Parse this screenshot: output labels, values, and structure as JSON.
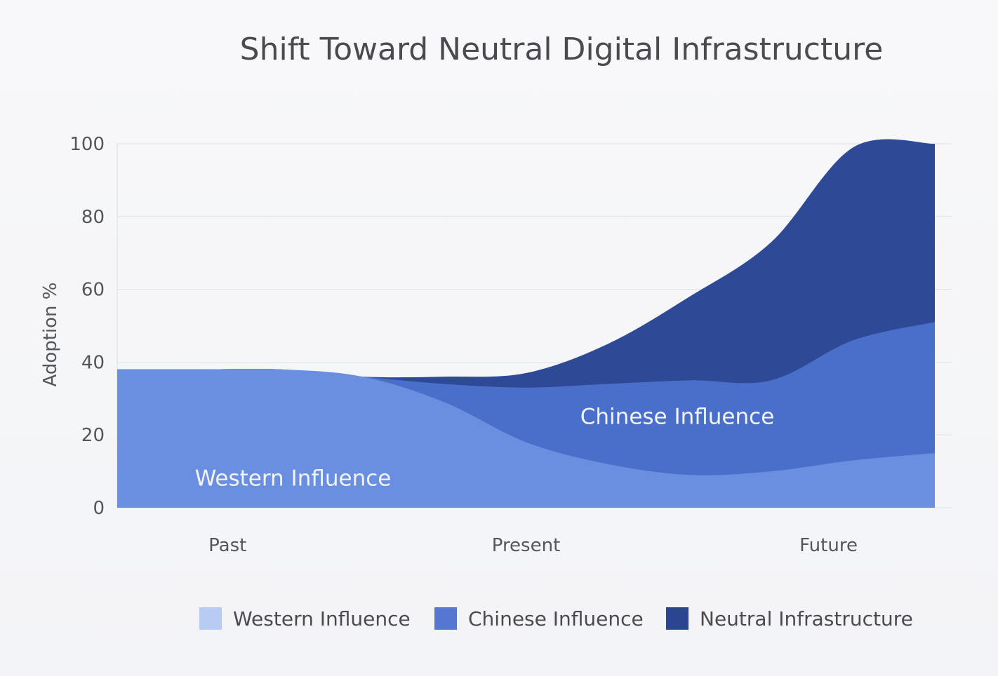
{
  "chart_data": {
    "type": "area",
    "stacked": true,
    "title": "Shift Toward Neutral Digital Infrastructure",
    "ylabel": "Adoption %",
    "xlabel": "",
    "ylim": [
      0,
      100
    ],
    "yticks": [
      0,
      20,
      40,
      60,
      80,
      100
    ],
    "x": [
      0,
      0.1,
      0.2,
      0.3,
      0.4,
      0.5,
      0.6,
      0.7,
      0.8,
      0.9,
      1.0
    ],
    "x_tick_labels": [
      {
        "label": "Past",
        "at": 0.135
      },
      {
        "label": "Present",
        "at": 0.5
      },
      {
        "label": "Future",
        "at": 0.87
      }
    ],
    "grid": true,
    "legend": "bottom",
    "series": [
      {
        "name": "Western Influence",
        "color": "#6a8fe0",
        "legend_color": "#b8cbf3",
        "values": [
          38,
          38,
          38,
          36,
          29,
          18,
          12,
          9,
          10,
          13,
          15
        ]
      },
      {
        "name": "Chinese Influence",
        "color": "#4a6fcb",
        "legend_color": "#5577d2",
        "values": [
          0,
          0,
          0,
          0,
          5,
          15,
          22,
          26,
          25,
          33,
          36
        ]
      },
      {
        "name": "Neutral Infrastructure",
        "color": "#2e4a96",
        "legend_color": "#2c4590",
        "values": [
          0,
          0,
          0,
          0,
          2,
          4,
          11,
          23,
          38,
          53,
          49
        ]
      }
    ],
    "annotations": [
      {
        "text": "Western Influence",
        "x": 0.215,
        "y": 8
      },
      {
        "text": "Chinese Influence",
        "x": 0.685,
        "y": 25
      }
    ]
  }
}
